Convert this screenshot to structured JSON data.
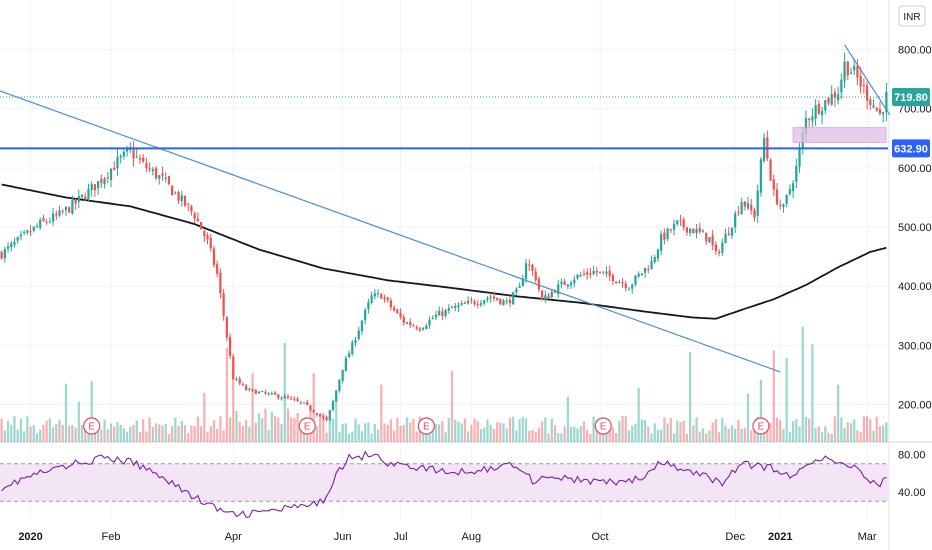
{
  "currency": "INR",
  "chart_data": {
    "type": "candlestick",
    "x_labels": [
      "2020",
      "Feb",
      "Apr",
      "Jun",
      "Jul",
      "Aug",
      "Oct",
      "Dec",
      "2021",
      "Mar"
    ],
    "price_axis": {
      "ticks": [
        "800.00",
        "700.00",
        "600.00",
        "500.00",
        "400.00",
        "300.00",
        "200.00"
      ],
      "range": [
        140,
        850
      ]
    },
    "last_price": "719.80",
    "support_price": "632.90",
    "rsi_axis": {
      "ticks": [
        "80.00",
        "40.00"
      ],
      "band": [
        30,
        70
      ]
    },
    "earnings_marker_label": "E",
    "colors": {
      "up": "#26a69a",
      "down": "#ef5350",
      "ma": "#131722",
      "trendline": "#4a90d9",
      "support": "#2962ff",
      "zone": "#e1bee7",
      "rsi_line": "#7b1fa2",
      "rsi_band": "#f3e5f5"
    },
    "price_anchors": [
      [
        0,
        455
      ],
      [
        6,
        480
      ],
      [
        12,
        505
      ],
      [
        18,
        520
      ],
      [
        24,
        545
      ],
      [
        30,
        575
      ],
      [
        36,
        610
      ],
      [
        40,
        628
      ],
      [
        44,
        605
      ],
      [
        50,
        580
      ],
      [
        55,
        550
      ],
      [
        60,
        520
      ],
      [
        64,
        475
      ],
      [
        67,
        420
      ],
      [
        69,
        350
      ],
      [
        70,
        315
      ],
      [
        72,
        245
      ],
      [
        76,
        225
      ],
      [
        82,
        218
      ],
      [
        88,
        212
      ],
      [
        94,
        200
      ],
      [
        98,
        185
      ],
      [
        101,
        172
      ],
      [
        103,
        205
      ],
      [
        106,
        262
      ],
      [
        109,
        300
      ],
      [
        112,
        342
      ],
      [
        115,
        382
      ],
      [
        118,
        385
      ],
      [
        121,
        365
      ],
      [
        125,
        340
      ],
      [
        130,
        330
      ],
      [
        135,
        350
      ],
      [
        140,
        362
      ],
      [
        146,
        372
      ],
      [
        152,
        382
      ],
      [
        157,
        372
      ],
      [
        161,
        395
      ],
      [
        163,
        442
      ],
      [
        166,
        415
      ],
      [
        168,
        375
      ],
      [
        172,
        395
      ],
      [
        178,
        415
      ],
      [
        184,
        425
      ],
      [
        190,
        415
      ],
      [
        195,
        400
      ],
      [
        198,
        418
      ],
      [
        202,
        440
      ],
      [
        205,
        480
      ],
      [
        210,
        505
      ],
      [
        215,
        495
      ],
      [
        220,
        480
      ],
      [
        222,
        452
      ],
      [
        226,
        495
      ],
      [
        230,
        545
      ],
      [
        234,
        520
      ],
      [
        237,
        650
      ],
      [
        240,
        555
      ],
      [
        243,
        530
      ],
      [
        247,
        600
      ],
      [
        250,
        682
      ],
      [
        253,
        700
      ],
      [
        256,
        712
      ],
      [
        260,
        730
      ],
      [
        262,
        775
      ],
      [
        265,
        760
      ],
      [
        270,
        715
      ],
      [
        273,
        690
      ],
      [
        275,
        720
      ]
    ],
    "ma_anchors": [
      [
        0,
        572
      ],
      [
        20,
        550
      ],
      [
        40,
        535
      ],
      [
        60,
        505
      ],
      [
        80,
        462
      ],
      [
        100,
        430
      ],
      [
        120,
        410
      ],
      [
        140,
        397
      ],
      [
        160,
        383
      ],
      [
        180,
        372
      ],
      [
        200,
        357
      ],
      [
        215,
        347
      ],
      [
        222,
        345
      ],
      [
        230,
        360
      ],
      [
        240,
        378
      ],
      [
        250,
        402
      ],
      [
        260,
        432
      ],
      [
        270,
        458
      ],
      [
        275,
        465
      ]
    ],
    "rsi_anchors": [
      [
        0,
        45
      ],
      [
        10,
        58
      ],
      [
        25,
        72
      ],
      [
        32,
        76
      ],
      [
        40,
        72
      ],
      [
        50,
        57
      ],
      [
        58,
        38
      ],
      [
        65,
        25
      ],
      [
        72,
        15
      ],
      [
        80,
        18
      ],
      [
        88,
        22
      ],
      [
        96,
        25
      ],
      [
        100,
        30
      ],
      [
        104,
        60
      ],
      [
        108,
        76
      ],
      [
        112,
        78
      ],
      [
        116,
        83
      ],
      [
        120,
        70
      ],
      [
        130,
        66
      ],
      [
        140,
        60
      ],
      [
        150,
        64
      ],
      [
        160,
        70
      ],
      [
        165,
        52
      ],
      [
        170,
        57
      ],
      [
        180,
        52
      ],
      [
        190,
        50
      ],
      [
        200,
        55
      ],
      [
        205,
        72
      ],
      [
        210,
        65
      ],
      [
        220,
        55
      ],
      [
        224,
        50
      ],
      [
        230,
        70
      ],
      [
        240,
        65
      ],
      [
        246,
        54
      ],
      [
        250,
        72
      ],
      [
        255,
        76
      ],
      [
        260,
        70
      ],
      [
        265,
        68
      ],
      [
        270,
        52
      ],
      [
        273,
        48
      ],
      [
        275,
        54
      ]
    ],
    "earnings_bar_indices": [
      28,
      95,
      132,
      187,
      236
    ],
    "n_bars": 276
  }
}
